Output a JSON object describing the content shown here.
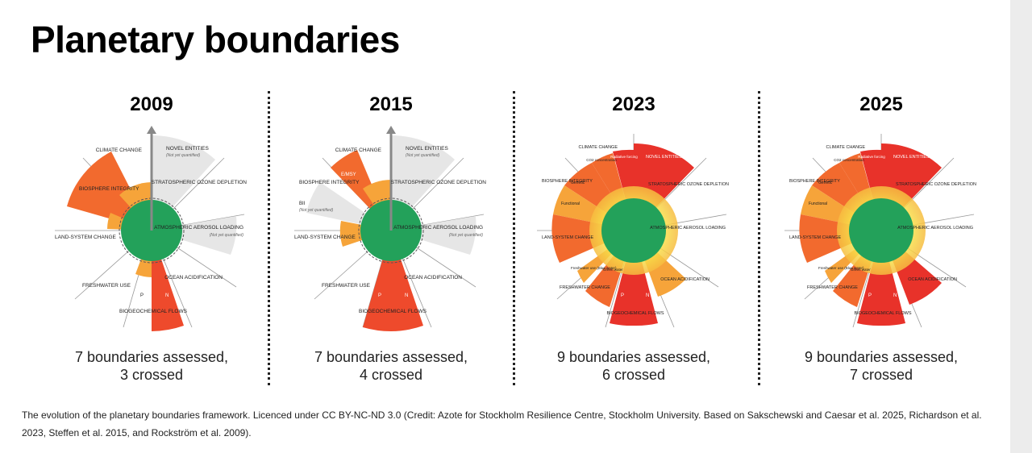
{
  "title": "Planetary boundaries",
  "caption": "The evolution of the planetary boundaries framework. Licenced under CC BY-NC-ND 3.0 (Credit: Azote for Stockholm Resilience Centre, Stockholm University. Based on Sakschewski and Caesar et al. 2025, Richardson et al. 2023, Steffen et al. 2015, and Rockström et al. 2009).",
  "colors": {
    "safe": "#23a15a",
    "zone": "#f4b042",
    "increasing": "#f37a2a",
    "high": "#d9262a",
    "not_quantified": "#dcdcdc"
  },
  "panels": [
    {
      "year": "2009",
      "summary_line1": "7 boundaries assessed,",
      "summary_line2": "3 crossed",
      "labels": {
        "climate": "CLIMATE CHANGE",
        "novel": "NOVEL ENTITIES",
        "novel_note": "(Not yet quantified)",
        "ozone": "STRATOSPHERIC OZONE DEPLETION",
        "aerosol": "ATMOSPHERIC AEROSOL LOADING",
        "aerosol_note": "(Not yet quantified)",
        "ocean": "OCEAN ACIDIFICATION",
        "biogeo": "BIOGEOCHEMICAL FLOWS",
        "n": "N",
        "p": "P",
        "freshwater": "FRESHWATER USE",
        "land": "LAND-SYSTEM CHANGE",
        "biosphere": "BIOSPHERE INTEGRITY"
      }
    },
    {
      "year": "2015",
      "summary_line1": "7 boundaries assessed,",
      "summary_line2": "4 crossed",
      "labels": {
        "climate": "CLIMATE CHANGE",
        "novel": "NOVEL ENTITIES",
        "novel_note": "(Not yet quantified)",
        "ozone": "STRATOSPHERIC OZONE DEPLETION",
        "aerosol": "ATMOSPHERIC AEROSOL LOADING",
        "aerosol_note": "(Not yet quantified)",
        "ocean": "OCEAN ACIDIFICATION",
        "biogeo": "BIOGEOCHEMICAL FLOWS",
        "n": "N",
        "p": "P",
        "freshwater": "FRESHWATER USE",
        "land": "LAND-SYSTEM CHANGE",
        "biosphere": "BIOSPHERE INTEGRITY",
        "e_msy": "E/MSY",
        "bii": "BII",
        "bii_note": "(Not yet quantified)"
      }
    },
    {
      "year": "2023",
      "summary_line1": "9 boundaries assessed,",
      "summary_line2": "6 crossed",
      "labels": {
        "climate": "CLIMATE CHANGE",
        "co2": "CO2 concentration",
        "radiative": "Radiative forcing",
        "novel": "NOVEL ENTITIES",
        "ozone": "STRATOSPHERIC OZONE DEPLETION",
        "aerosol": "ATMOSPHERIC AEROSOL LOADING",
        "ocean": "OCEAN ACIDIFICATION",
        "biogeo": "BIOGEOCHEMICAL FLOWS",
        "n": "N",
        "p": "P",
        "freshwater": "FRESHWATER CHANGE",
        "blue": "Freshwater use (Blue water)",
        "green": "Green water",
        "land": "LAND-SYSTEM CHANGE",
        "biosphere": "BIOSPHERE INTEGRITY",
        "genetic": "Genetic",
        "functional": "Functional"
      }
    },
    {
      "year": "2025",
      "summary_line1": "9 boundaries assessed,",
      "summary_line2": "7 crossed",
      "labels": {
        "climate": "CLIMATE CHANGE",
        "co2": "CO2 concentration",
        "radiative": "Radiative forcing",
        "novel": "NOVEL ENTITIES",
        "ozone": "STRATOSPHERIC OZONE DEPLETION",
        "aerosol": "ATMOSPHERIC AEROSOL LOADING",
        "ocean": "OCEAN ACIDIFICATION",
        "biogeo": "BIOGEOCHEMICAL FLOWS",
        "n": "N",
        "p": "P",
        "freshwater": "FRESHWATER CHANGE",
        "blue": "Freshwater use (Blue water)",
        "green": "Green water",
        "land": "LAND-SYSTEM CHANGE",
        "biosphere": "BIOSPHERE INTEGRITY",
        "genetic": "Genetic",
        "functional": "Functional"
      }
    }
  ]
}
